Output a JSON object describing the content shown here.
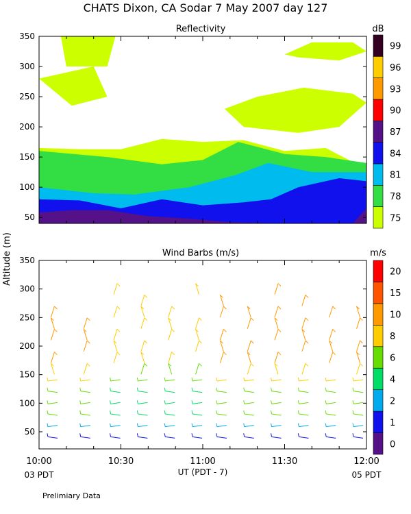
{
  "header": {
    "title": "CHATS Dixon, CA  Sodar    7 May 2007  day 127",
    "ylabel_shared": "Altitude (m)",
    "xlabel": "UT  (PDT - 7)",
    "x_start_note": "03 PDT",
    "x_end_note": "05 PDT",
    "footer": "Prelimiary Data"
  },
  "colors": {
    "reflectivity": [
      "#ccff00",
      "#33dd44",
      "#00bbee",
      "#1111ee",
      "#551188",
      "#ff0000",
      "#ff9900",
      "#ffcc00",
      "#330022"
    ],
    "wind": [
      "#551188",
      "#1111ee",
      "#00aaee",
      "#00dd66",
      "#66dd00",
      "#ffcc00",
      "#ff9900",
      "#ff5500",
      "#ff0000"
    ]
  },
  "chart_data": [
    {
      "type": "contour",
      "title": "Reflectivity",
      "colorbar_label": "dB",
      "colorbar_ticks": [
        "75",
        "78",
        "81",
        "84",
        "87",
        "90",
        "93",
        "96",
        "99"
      ],
      "xlabel": "UT  (PDT - 7)",
      "ylabel": "Altitude (m)",
      "xlim": [
        "10:00",
        "12:00"
      ],
      "ylim": [
        40,
        350
      ],
      "x_ticks": [
        "10:00",
        "10:30",
        "11:00",
        "11:30",
        "12:00"
      ],
      "y_ticks": [
        "50",
        "100",
        "150",
        "200",
        "250",
        "300",
        "350"
      ],
      "layers": [
        {
          "level": 75,
          "region": [
            [
              0,
              165
            ],
            [
              15,
              163
            ],
            [
              30,
              163
            ],
            [
              45,
              180
            ],
            [
              60,
              175
            ],
            [
              75,
              178
            ],
            [
              90,
              160
            ],
            [
              105,
              165
            ],
            [
              120,
              130
            ],
            [
              120,
              40
            ],
            [
              0,
              40
            ]
          ]
        },
        {
          "level": 75,
          "region": [
            [
              8,
              350
            ],
            [
              28,
              350
            ],
            [
              25,
              300
            ],
            [
              10,
              300
            ]
          ]
        },
        {
          "level": 75,
          "region": [
            [
              0,
              280
            ],
            [
              20,
              300
            ],
            [
              25,
              250
            ],
            [
              12,
              235
            ]
          ]
        },
        {
          "level": 75,
          "region": [
            [
              68,
              230
            ],
            [
              80,
              250
            ],
            [
              97,
              265
            ],
            [
              115,
              255
            ],
            [
              120,
              240
            ],
            [
              110,
              200
            ],
            [
              95,
              190
            ],
            [
              75,
              200
            ]
          ]
        },
        {
          "level": 75,
          "region": [
            [
              90,
              320
            ],
            [
              100,
              340
            ],
            [
              115,
              340
            ],
            [
              120,
              325
            ],
            [
              110,
              310
            ],
            [
              95,
              315
            ]
          ]
        },
        {
          "level": 78,
          "region": [
            [
              0,
              160
            ],
            [
              25,
              150
            ],
            [
              45,
              138
            ],
            [
              60,
              145
            ],
            [
              73,
              175
            ],
            [
              90,
              155
            ],
            [
              105,
              150
            ],
            [
              120,
              140
            ],
            [
              120,
              40
            ],
            [
              0,
              40
            ]
          ]
        },
        {
          "level": 81,
          "region": [
            [
              0,
              100
            ],
            [
              20,
              90
            ],
            [
              35,
              88
            ],
            [
              55,
              100
            ],
            [
              72,
              120
            ],
            [
              84,
              140
            ],
            [
              100,
              125
            ],
            [
              120,
              125
            ],
            [
              120,
              40
            ],
            [
              0,
              40
            ]
          ]
        },
        {
          "level": 84,
          "region": [
            [
              0,
              80
            ],
            [
              15,
              78
            ],
            [
              30,
              65
            ],
            [
              45,
              80
            ],
            [
              60,
              70
            ],
            [
              75,
              75
            ],
            [
              85,
              80
            ],
            [
              95,
              100
            ],
            [
              110,
              115
            ],
            [
              120,
              110
            ],
            [
              120,
              40
            ],
            [
              0,
              40
            ]
          ]
        },
        {
          "level": 87,
          "region": [
            [
              0,
              58
            ],
            [
              12,
              62
            ],
            [
              25,
              62
            ],
            [
              40,
              52
            ],
            [
              55,
              48
            ],
            [
              70,
              42
            ],
            [
              90,
              40
            ],
            [
              0,
              40
            ]
          ]
        },
        {
          "level": 87,
          "region": [
            [
              115,
              40
            ],
            [
              120,
              40
            ],
            [
              120,
              65
            ]
          ]
        }
      ]
    },
    {
      "type": "wind-barbs",
      "title": "Wind Barbs (m/s)",
      "colorbar_label": "m/s",
      "colorbar_ticks": [
        "0",
        "1",
        "2",
        "4",
        "6",
        "8",
        "10",
        "15",
        "20"
      ],
      "xlabel": "UT  (PDT - 7)",
      "ylabel": "Altitude (m)",
      "xlim": [
        "10:00",
        "12:00"
      ],
      "ylim": [
        20,
        350
      ],
      "x_ticks": [
        "10:00",
        "10:30",
        "11:00",
        "11:30",
        "12:00"
      ],
      "y_ticks": [
        "50",
        "100",
        "150",
        "200",
        "250",
        "300",
        "350"
      ],
      "times_min": [
        5,
        17,
        28,
        38,
        48,
        58,
        67,
        77,
        87,
        97,
        107,
        117
      ],
      "levels_m": [
        40,
        60,
        80,
        100,
        120,
        140,
        160,
        180,
        200,
        220,
        240,
        260,
        280,
        300
      ]
    }
  ]
}
